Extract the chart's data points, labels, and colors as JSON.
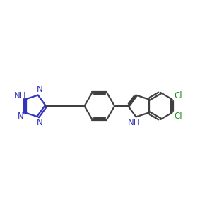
{
  "background_color": "#ffffff",
  "bond_color": "#404040",
  "nitrogen_color": "#3333bb",
  "chlorine_color": "#228B22",
  "line_width": 1.6,
  "font_size": 8.5,
  "xlim": [
    -3.2,
    4.8
  ],
  "ylim": [
    -2.0,
    2.0
  ]
}
